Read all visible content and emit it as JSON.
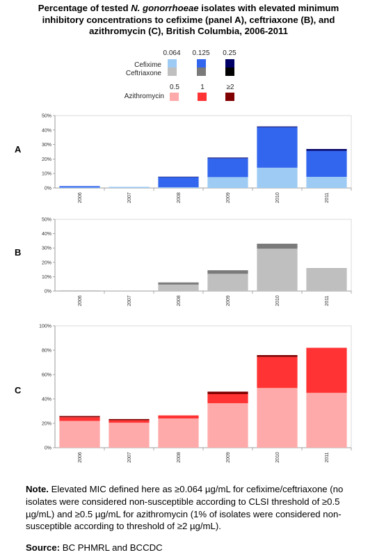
{
  "title": {
    "line1_a": "Percentage of tested ",
    "line1_italic": "N. gonorrhoeae",
    "line1_b": " isolates with elevated minimum",
    "line2": "inhibitory concentrations to cefixime (panel A), ceftriaxone (B), and",
    "line3": "azithromycin (C), British Columbia, 2006-2011"
  },
  "legend": {
    "ceph_levels": [
      "0.064",
      "0.125",
      "0.25"
    ],
    "cefixime_label": "Cefixime",
    "ceftriaxone_label": "Ceftriaxone",
    "cefixime_colors": [
      "#9ecbf3",
      "#3366ee",
      "#000066"
    ],
    "ceftriaxone_colors": [
      "#bfbfbf",
      "#7a7a7a",
      "#000000"
    ],
    "azi_levels": [
      "0.5",
      "1",
      "≥2"
    ],
    "azithromycin_label": "Azithromycin",
    "azithromycin_colors": [
      "#ffaaaa",
      "#ff3333",
      "#800000"
    ]
  },
  "chart_data": [
    {
      "type": "bar",
      "stacked": true,
      "panel": "A",
      "categories": [
        "2006",
        "2007",
        "2008",
        "2009",
        "2010",
        "2011"
      ],
      "ylim": [
        0,
        50
      ],
      "yticks": [
        "0%",
        "10%",
        "20%",
        "30%",
        "40%",
        "50%"
      ],
      "yticks_values": [
        0,
        10,
        20,
        30,
        40,
        50
      ],
      "series": [
        {
          "name": "0.064",
          "color": "#9ecbf3",
          "values": [
            0.3,
            0.8,
            0.5,
            7.5,
            14,
            7.7
          ]
        },
        {
          "name": "0.125",
          "color": "#3366ee",
          "values": [
            1.0,
            0,
            7.0,
            13.0,
            28.0,
            18.0
          ]
        },
        {
          "name": "0.25",
          "color": "#000066",
          "values": [
            0,
            0,
            0.3,
            0.5,
            0.5,
            1.2
          ]
        }
      ]
    },
    {
      "type": "bar",
      "stacked": true,
      "panel": "B",
      "categories": [
        "2006",
        "2007",
        "2008",
        "2009",
        "2010",
        "2011"
      ],
      "ylim": [
        0,
        50
      ],
      "yticks": [
        "0%",
        "10%",
        "20%",
        "30%",
        "40%",
        "50%"
      ],
      "yticks_values": [
        0,
        10,
        20,
        30,
        40,
        50
      ],
      "series": [
        {
          "name": "0.064",
          "color": "#bfbfbf",
          "values": [
            0.5,
            0,
            4.5,
            12,
            29.5,
            15.5
          ]
        },
        {
          "name": "0.125",
          "color": "#7a7a7a",
          "values": [
            0,
            0,
            1.5,
            2.5,
            3.5,
            0.3
          ]
        },
        {
          "name": "0.25",
          "color": "#000000",
          "values": [
            0,
            0,
            0,
            0,
            0,
            0
          ]
        }
      ]
    },
    {
      "type": "bar",
      "stacked": true,
      "panel": "C",
      "categories": [
        "2006",
        "2007",
        "2008",
        "2009",
        "2010",
        "2011"
      ],
      "ylim": [
        0,
        100
      ],
      "yticks": [
        "0%",
        "20%",
        "40%",
        "60%",
        "80%",
        "100%"
      ],
      "yticks_values": [
        0,
        20,
        40,
        60,
        80,
        100
      ],
      "series": [
        {
          "name": "0.5",
          "color": "#ffaaaa",
          "values": [
            22,
            20.5,
            24,
            36.5,
            49,
            45
          ]
        },
        {
          "name": "1",
          "color": "#ff3333",
          "values": [
            3,
            2,
            2.5,
            7.5,
            25.5,
            37
          ]
        },
        {
          "name": "≥2",
          "color": "#800000",
          "values": [
            1,
            1,
            0,
            2,
            1.5,
            0
          ]
        }
      ]
    }
  ],
  "note": {
    "label": "Note.",
    "text": " Elevated MIC defined here as ≥0.064 µg/mL for cefixime/ceftriaxone (no isolates were considered non-susceptible according to CLSI threshold of ≥0.5 µg/mL) and ≥0.5 µg/mL for azithromycin (1% of isolates were considered non-susceptible according to threshold of ≥2 µg/mL)."
  },
  "source": {
    "label": "Source:",
    "text": " BC PHMRL and BCCDC"
  }
}
